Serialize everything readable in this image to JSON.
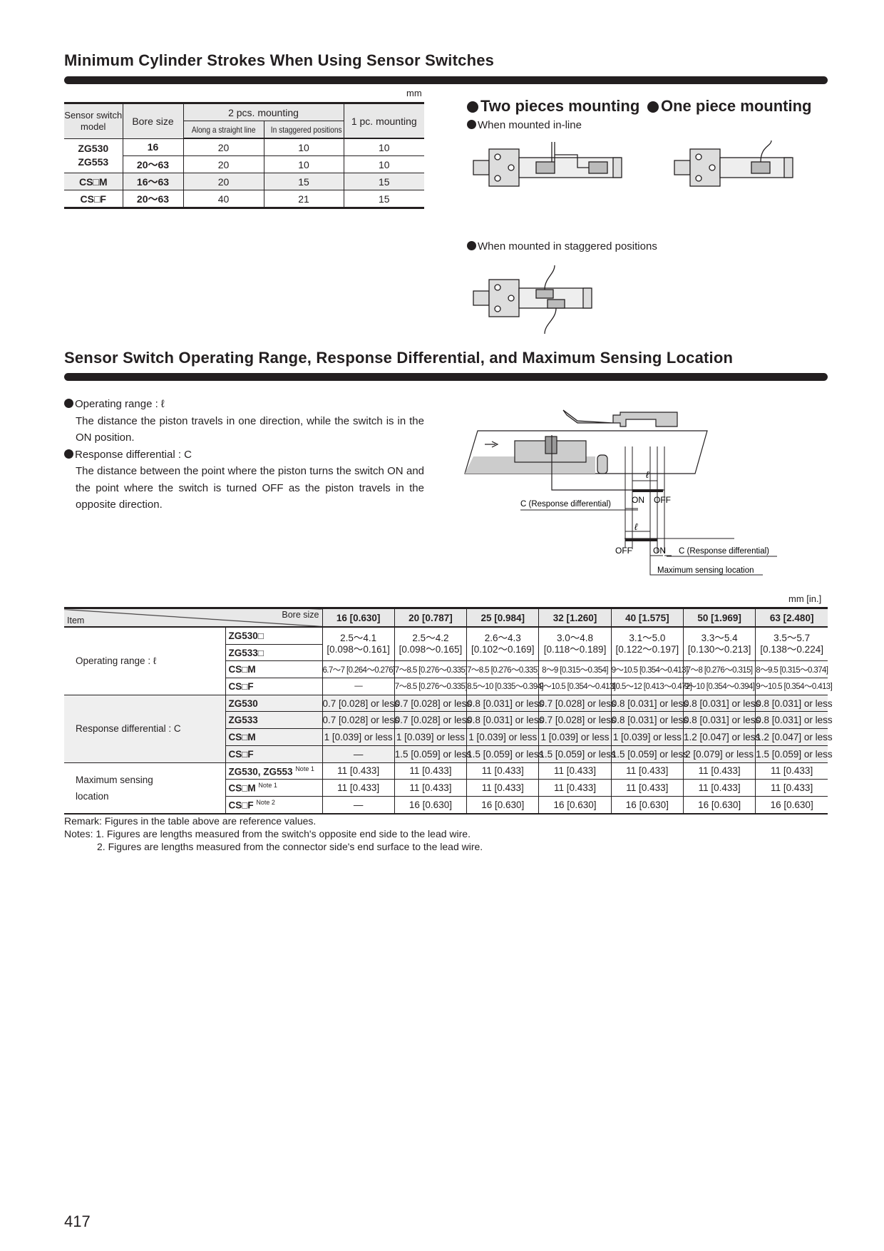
{
  "section1": {
    "title": "Minimum Cylinder Strokes When Using Sensor Switches",
    "unit": "mm",
    "table": {
      "headers": {
        "model": "Sensor switch model",
        "bore": "Bore size",
        "two_pcs": "2 pcs. mounting",
        "straight": "Along a straight line",
        "staggered": "In staggered positions",
        "one_pc": "1 pc. mounting"
      },
      "rows": [
        {
          "model": "ZG530\nZG553",
          "bore": "16",
          "straight": "20",
          "staggered": "10",
          "one_pc": "10"
        },
        {
          "model": "",
          "bore": "20～63",
          "straight": "20",
          "staggered": "10",
          "one_pc": "10"
        },
        {
          "model": "CS□M",
          "bore": "16～63",
          "straight": "20",
          "staggered": "15",
          "one_pc": "15"
        },
        {
          "model": "CS□F",
          "bore": "20～63",
          "straight": "40",
          "staggered": "21",
          "one_pc": "15"
        }
      ]
    },
    "two_pieces": "Two pieces mounting",
    "one_piece": "One piece mounting",
    "inline_caption": "When mounted in-line",
    "staggered_caption": "When mounted in staggered positions"
  },
  "section2": {
    "title": "Sensor Switch Operating Range, Response Differential, and Maximum Sensing Location",
    "bullets": [
      {
        "term": "Operating range : ℓ",
        "desc": "The distance the piston travels in one direction, while the switch is in the ON position."
      },
      {
        "term": "Response differential : C",
        "desc": "The distance between the point where the piston turns the switch ON and the point where the switch is turned OFF as the piston travels in the opposite direction."
      }
    ],
    "diagram": {
      "ell": "ℓ",
      "on": "ON",
      "off": "OFF",
      "c_label": "C (Response differential)",
      "max_label": "Maximum sensing location"
    },
    "unit": "mm [in.]",
    "table": {
      "item_header": "Item",
      "bore_header": "Bore size",
      "bores": [
        "16 [0.630]",
        "20 [0.787]",
        "25 [0.984]",
        "32 [1.260]",
        "40 [1.575]",
        "50 [1.969]",
        "63 [2.480]"
      ],
      "groups": [
        {
          "item": "Operating range :  ℓ",
          "rows": [
            {
              "model": "ZG530□",
              "model2": "ZG533□",
              "merged": true,
              "values": [
                "2.5～4.1\n[0.098～0.161]",
                "2.5～4.2\n[0.098～0.165]",
                "2.6～4.3\n[0.102～0.169]",
                "3.0～4.8\n[0.118～0.189]",
                "3.1～5.0\n[0.122～0.197]",
                "3.3～5.4\n[0.130～0.213]",
                "3.5～5.7\n[0.138～0.224]"
              ]
            },
            {
              "model": "CS□M",
              "narrow": true,
              "values": [
                "6.7～7 [0.264～0.276]",
                "7～8.5 [0.276～0.335]",
                "7～8.5 [0.276～0.335]",
                "8～9 [0.315～0.354]",
                "9～10.5 [0.354～0.413]",
                "7～8 [0.276～0.315]",
                "8～9.5 [0.315～0.374]"
              ]
            },
            {
              "model": "CS□F",
              "narrow": true,
              "values": [
                "—",
                "7～8.5 [0.276～0.335]",
                "8.5～10 [0.335～0.394]",
                "9～10.5 [0.354～0.413]",
                "10.5～12 [0.413～0.472]",
                "9～10 [0.354～0.394]",
                "9～10.5 [0.354～0.413]"
              ]
            }
          ]
        },
        {
          "item": "Response differential : C",
          "gray": true,
          "rows": [
            {
              "model": "ZG530",
              "values": [
                "0.7 [0.028] or less",
                "0.7 [0.028] or less",
                "0.8 [0.031] or less",
                "0.7 [0.028] or less",
                "0.8 [0.031] or less",
                "0.8 [0.031] or less",
                "0.8 [0.031] or less"
              ]
            },
            {
              "model": "ZG533",
              "values": [
                "0.7 [0.028] or less",
                "0.7 [0.028] or less",
                "0.8 [0.031] or less",
                "0.7 [0.028] or less",
                "0.8 [0.031] or less",
                "0.8 [0.031] or less",
                "0.8 [0.031] or less"
              ]
            },
            {
              "model": "CS□M",
              "values": [
                "1 [0.039] or less",
                "1 [0.039] or less",
                "1 [0.039] or less",
                "1 [0.039] or less",
                "1 [0.039] or less",
                "1.2 [0.047] or less",
                "1.2 [0.047] or less"
              ]
            },
            {
              "model": "CS□F",
              "values": [
                "—",
                "1.5 [0.059] or less",
                "1.5 [0.059] or less",
                "1.5 [0.059] or less",
                "1.5 [0.059] or less",
                "2 [0.079] or less",
                "1.5 [0.059] or less"
              ]
            }
          ]
        },
        {
          "item": "Maximum sensing\nlocation",
          "rows": [
            {
              "model": "ZG530, ZG553",
              "note": "Note 1",
              "values": [
                "11 [0.433]",
                "11 [0.433]",
                "11 [0.433]",
                "11 [0.433]",
                "11 [0.433]",
                "11 [0.433]",
                "11 [0.433]"
              ]
            },
            {
              "model": "CS□M",
              "note": "Note 1",
              "values": [
                "11 [0.433]",
                "11 [0.433]",
                "11 [0.433]",
                "11 [0.433]",
                "11 [0.433]",
                "11 [0.433]",
                "11 [0.433]"
              ]
            },
            {
              "model": "CS□F",
              "note": "Note 2",
              "values": [
                "—",
                "16 [0.630]",
                "16 [0.630]",
                "16 [0.630]",
                "16 [0.630]",
                "16 [0.630]",
                "16 [0.630]"
              ]
            }
          ]
        }
      ]
    },
    "remark": "Remark: Figures in the table above are reference values.",
    "note1": "Notes: 1. Figures are lengths measured from the switch's opposite end side to the lead wire.",
    "note2": "2. Figures are lengths measured from the connector side's end surface to the lead wire."
  },
  "page_number": "417"
}
